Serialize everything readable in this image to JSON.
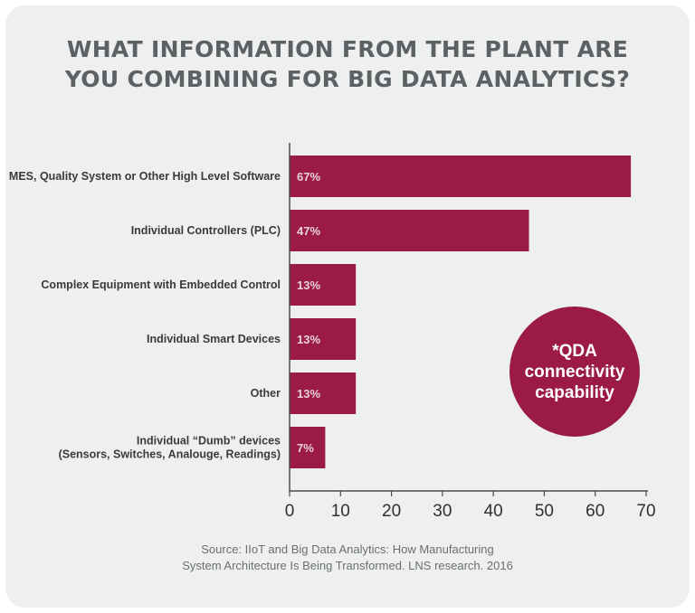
{
  "title": {
    "line1": "WHAT INFORMATION FROM THE PLANT ARE",
    "line2": "YOU COMBINING FOR BIG DATA ANALYTICS?"
  },
  "badge": {
    "line1": "*QDA",
    "line2": "connectivity",
    "line3": "capability"
  },
  "source": {
    "line1": "Source: IIoT and Big Data Analytics: How Manufacturing",
    "line2": "System Architecture Is Being Transformed. LNS research. 2016"
  },
  "colors": {
    "bar": "#9b1b46",
    "background": "#eef0f0",
    "title": "#5d6064"
  },
  "chart_data": {
    "type": "bar",
    "orientation": "horizontal",
    "categories": [
      [
        "MES, Quality System or Other High Level Software"
      ],
      [
        "Individual Controllers (PLC)"
      ],
      [
        "Complex Equipment with Embedded Control"
      ],
      [
        "Individual Smart Devices"
      ],
      [
        "Other"
      ],
      [
        "Individual “Dumb” devices",
        "(Sensors, Switches, Analouge, Readings)"
      ]
    ],
    "values": [
      67,
      47,
      13,
      13,
      13,
      7
    ],
    "data_labels": [
      "67%",
      "47%",
      "13%",
      "13%",
      "13%",
      "7%"
    ],
    "xlim": [
      0,
      70
    ],
    "xticks": [
      0,
      10,
      20,
      30,
      40,
      50,
      60,
      70
    ],
    "grid": false,
    "legend": "none"
  }
}
